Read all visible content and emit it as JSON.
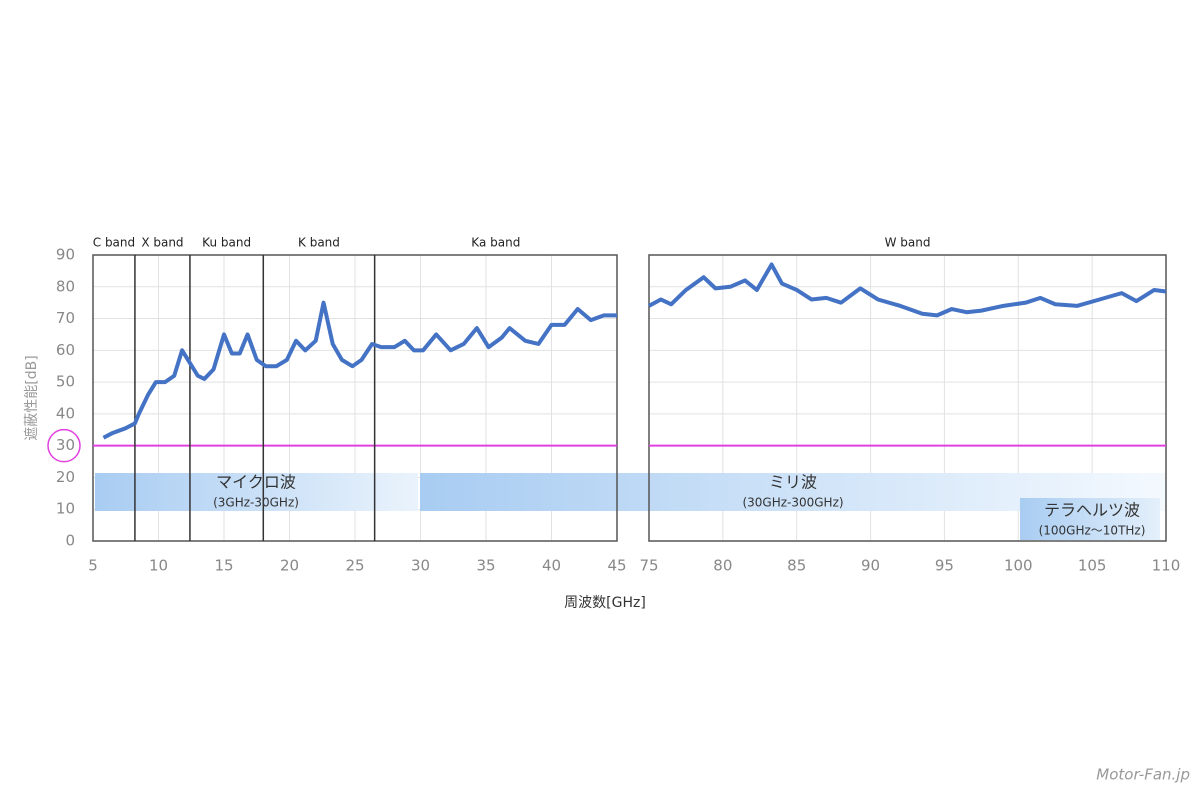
{
  "chart_data": [
    {
      "type": "line",
      "x_label": "周波数[GHz]",
      "y_label": "遮蔽性能[dB]",
      "x": [
        5.8,
        6.5,
        7.5,
        8.2,
        8.5,
        9.2,
        9.8,
        10.5,
        11.2,
        11.8,
        12.4,
        13,
        13.5,
        14.2,
        15,
        15.6,
        16.2,
        16.8,
        17.5,
        18.2,
        19,
        19.8,
        20.5,
        21.2,
        22,
        22.6,
        23.3,
        24,
        24.8,
        25.5,
        26.3,
        27,
        28,
        28.8,
        29.5,
        30.2,
        31.2,
        32.3,
        33.3,
        34.3,
        35.2,
        36.2,
        36.8,
        38,
        39,
        40,
        41,
        42,
        43,
        44,
        45
      ],
      "series": [
        {
          "color": "#4472c4",
          "values": [
            32.5,
            34,
            35.5,
            37,
            40,
            46,
            50,
            50,
            52,
            60,
            56,
            52,
            51,
            54,
            65,
            59,
            59,
            65,
            57,
            55,
            55,
            57,
            63,
            60,
            63,
            75,
            62,
            57,
            55,
            57,
            62,
            61,
            61,
            63,
            60,
            60,
            65,
            60,
            62,
            67,
            61,
            64,
            67,
            63,
            62,
            68,
            68,
            73,
            69.5,
            71,
            71
          ]
        }
      ],
      "xlim": [
        5,
        45
      ],
      "xticks": [
        5,
        10,
        15,
        20,
        25,
        30,
        35,
        40,
        45
      ],
      "ylim": [
        0,
        90
      ],
      "yticks": [
        0,
        10,
        20,
        30,
        40,
        50,
        60,
        70,
        80,
        90
      ],
      "threshold": 30,
      "threshold_color": "#e040e0",
      "grid": true,
      "band_edges": [
        5,
        8.2,
        12.4,
        18,
        26.5,
        45
      ],
      "band_labels": [
        "C band",
        "X band",
        "Ku band",
        "K band",
        "Ka band"
      ]
    },
    {
      "type": "line",
      "x": [
        75,
        75.8,
        76.5,
        77.5,
        78.7,
        79.5,
        80.5,
        81.5,
        82.3,
        83.3,
        84,
        85,
        86,
        87,
        88,
        89.3,
        90.5,
        92,
        93.5,
        94.5,
        95.5,
        96.5,
        97.5,
        99,
        100.5,
        101.5,
        102.5,
        104,
        105.5,
        107,
        108,
        109.2,
        110
      ],
      "series": [
        {
          "color": "#4472c4",
          "values": [
            74,
            76,
            74.5,
            79,
            83,
            79.5,
            80,
            82,
            79,
            87,
            81,
            79,
            76,
            76.5,
            75,
            79.5,
            76,
            74,
            71.5,
            71,
            73,
            72,
            72.5,
            74,
            75,
            76.5,
            74.5,
            74,
            76,
            78,
            75.5,
            79,
            78.5
          ]
        }
      ],
      "xlim": [
        75,
        110
      ],
      "xticks": [
        75,
        80,
        85,
        90,
        95,
        100,
        105,
        110
      ],
      "ylim": [
        0,
        90
      ],
      "yticks": [
        0,
        10,
        20,
        30,
        40,
        50,
        60,
        70,
        80,
        90
      ],
      "threshold": 30,
      "threshold_color": "#e040e0",
      "grid": true,
      "band_edges": [
        75,
        110
      ],
      "band_labels": [
        "W band"
      ]
    }
  ],
  "regions": [
    {
      "label": "マイクロ波",
      "range": "(3GHz-30GHz)"
    },
    {
      "label": "ミリ波",
      "range": "(30GHz-300GHz)"
    },
    {
      "label": "テラヘルツ波",
      "range": "(100GHz〜10THz)"
    }
  ],
  "watermark": "Motor-Fan.jp"
}
